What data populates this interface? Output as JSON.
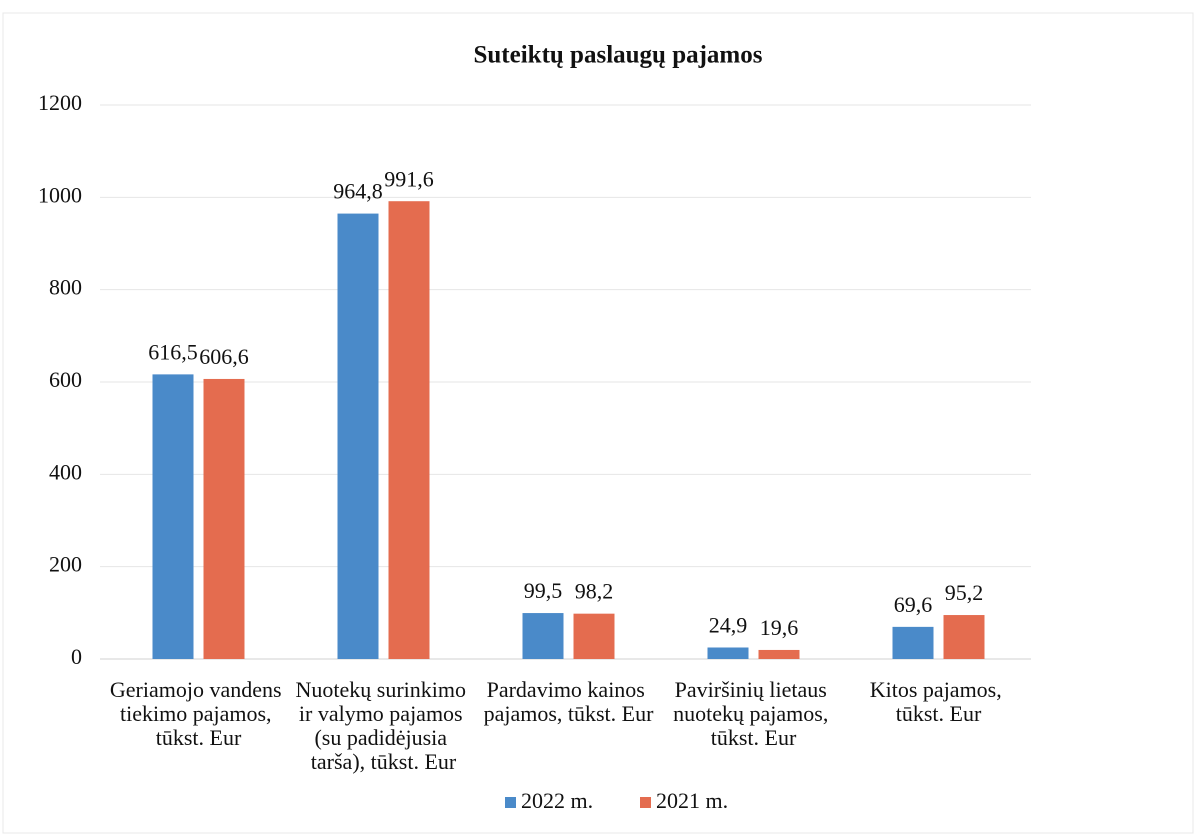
{
  "chart_data": {
    "type": "bar",
    "title": "Suteiktų paslaugų pajamos",
    "categories": [
      "Geriamojo vandens tiekimo pajamos, tūkst. Eur",
      "Nuotekų surinkimo ir valymo pajamos (su padidėjusia tarša), tūkst. Eur",
      "Pardavimo kainos pajamos, tūkst. Eur",
      "Paviršinių lietaus nuotekų pajamos, tūkst. Eur",
      "Kitos pajamos, tūkst. Eur"
    ],
    "series": [
      {
        "name": "2022 m.",
        "color": "#4a8ac9",
        "values": [
          616.5,
          964.8,
          99.5,
          24.9,
          69.6
        ],
        "value_labels": [
          "616,5",
          "964,8",
          "99,5",
          "24,9",
          "69,6"
        ]
      },
      {
        "name": "2021 m.",
        "color": "#e46c4f",
        "values": [
          606.6,
          991.6,
          98.2,
          19.6,
          95.2
        ],
        "value_labels": [
          "606,6",
          "991,6",
          "98,2",
          "19,6",
          "95,2"
        ]
      }
    ],
    "ylim": [
      0,
      1200
    ],
    "yticks": [
      0,
      200,
      400,
      600,
      800,
      1000,
      1200
    ],
    "grid": true,
    "legend": "bottom"
  }
}
